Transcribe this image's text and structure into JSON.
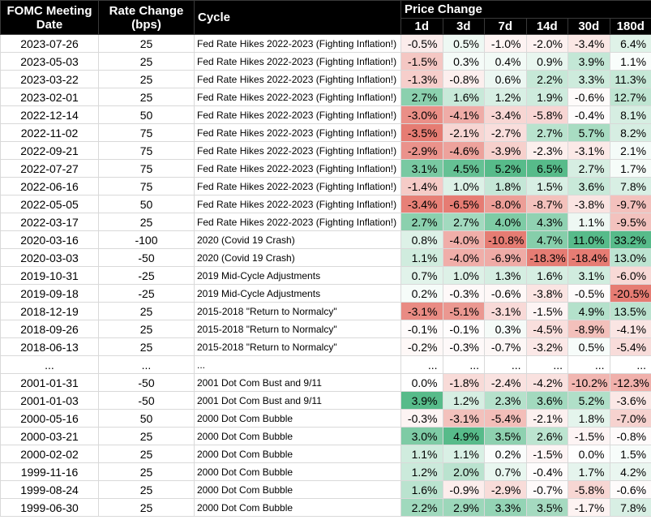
{
  "headers": {
    "date": [
      "FOMC Meeting",
      "Date"
    ],
    "rate": [
      "Rate Change",
      "(bps)"
    ],
    "cycle": "Cycle",
    "price_change": "Price Change",
    "periods": [
      "1d",
      "3d",
      "7d",
      "14d",
      "30d",
      "180d"
    ]
  },
  "colors": {
    "header_bg": "#000000",
    "header_text": "#ffffff",
    "positive_max": "#57bb8a",
    "negative_max": "#e67c73",
    "neutral": "#ffffff"
  },
  "rows": [
    {
      "date": "2023-07-26",
      "rate": "25",
      "cycle": "Fed Rate Hikes 2022-2023 (Fighting Inflation!)",
      "changes": [
        "-0.5%",
        "0.5%",
        "-1.0%",
        "-2.0%",
        "-3.4%",
        "6.4%"
      ]
    },
    {
      "date": "2023-05-03",
      "rate": "25",
      "cycle": "Fed Rate Hikes 2022-2023 (Fighting Inflation!)",
      "changes": [
        "-1.5%",
        "0.3%",
        "0.4%",
        "0.9%",
        "3.9%",
        "1.1%"
      ]
    },
    {
      "date": "2023-03-22",
      "rate": "25",
      "cycle": "Fed Rate Hikes 2022-2023 (Fighting Inflation!)",
      "changes": [
        "-1.3%",
        "-0.8%",
        "0.6%",
        "2.2%",
        "3.3%",
        "11.3%"
      ]
    },
    {
      "date": "2023-02-01",
      "rate": "25",
      "cycle": "Fed Rate Hikes 2022-2023 (Fighting Inflation!)",
      "changes": [
        "2.7%",
        "1.6%",
        "1.2%",
        "1.9%",
        "-0.6%",
        "12.7%"
      ]
    },
    {
      "date": "2022-12-14",
      "rate": "50",
      "cycle": "Fed Rate Hikes 2022-2023 (Fighting Inflation!)",
      "changes": [
        "-3.0%",
        "-4.1%",
        "-3.4%",
        "-5.8%",
        "-0.4%",
        "8.1%"
      ]
    },
    {
      "date": "2022-11-02",
      "rate": "75",
      "cycle": "Fed Rate Hikes 2022-2023 (Fighting Inflation!)",
      "changes": [
        "-3.5%",
        "-2.1%",
        "-2.7%",
        "2.7%",
        "5.7%",
        "8.2%"
      ]
    },
    {
      "date": "2022-09-21",
      "rate": "75",
      "cycle": "Fed Rate Hikes 2022-2023 (Fighting Inflation!)",
      "changes": [
        "-2.9%",
        "-4.6%",
        "-3.9%",
        "-2.3%",
        "-3.1%",
        "2.1%"
      ]
    },
    {
      "date": "2022-07-27",
      "rate": "75",
      "cycle": "Fed Rate Hikes 2022-2023 (Fighting Inflation!)",
      "changes": [
        "3.1%",
        "4.5%",
        "5.2%",
        "6.5%",
        "2.7%",
        "1.7%"
      ]
    },
    {
      "date": "2022-06-16",
      "rate": "75",
      "cycle": "Fed Rate Hikes 2022-2023 (Fighting Inflation!)",
      "changes": [
        "-1.4%",
        "1.0%",
        "1.8%",
        "1.5%",
        "3.6%",
        "7.8%"
      ]
    },
    {
      "date": "2022-05-05",
      "rate": "50",
      "cycle": "Fed Rate Hikes 2022-2023 (Fighting Inflation!)",
      "changes": [
        "-3.4%",
        "-6.5%",
        "-8.0%",
        "-8.7%",
        "-3.8%",
        "-9.7%"
      ]
    },
    {
      "date": "2022-03-17",
      "rate": "25",
      "cycle": "Fed Rate Hikes 2022-2023 (Fighting Inflation!)",
      "changes": [
        "2.7%",
        "2.7%",
        "4.0%",
        "4.3%",
        "1.1%",
        "-9.5%"
      ]
    },
    {
      "date": "2020-03-16",
      "rate": "-100",
      "cycle": "2020 (Covid 19 Crash)",
      "changes": [
        "0.8%",
        "-4.0%",
        "-10.8%",
        "4.7%",
        "11.0%",
        "33.2%"
      ]
    },
    {
      "date": "2020-03-03",
      "rate": "-50",
      "cycle": "2020 (Covid 19 Crash)",
      "changes": [
        "1.1%",
        "-4.0%",
        "-6.9%",
        "-18.3%",
        "-18.4%",
        "13.0%"
      ]
    },
    {
      "date": "2019-10-31",
      "rate": "-25",
      "cycle": "2019 Mid-Cycle Adjustments",
      "changes": [
        "0.7%",
        "1.0%",
        "1.3%",
        "1.6%",
        "3.1%",
        "-6.0%"
      ]
    },
    {
      "date": "2019-09-18",
      "rate": "-25",
      "cycle": "2019 Mid-Cycle Adjustments",
      "changes": [
        "0.2%",
        "-0.3%",
        "-0.6%",
        "-3.8%",
        "-0.5%",
        "-20.5%"
      ]
    },
    {
      "date": "2018-12-19",
      "rate": "25",
      "cycle": "2015-2018 \"Return to Normalcy\"",
      "changes": [
        "-3.1%",
        "-5.1%",
        "-3.1%",
        "-1.5%",
        "4.9%",
        "13.5%"
      ]
    },
    {
      "date": "2018-09-26",
      "rate": "25",
      "cycle": "2015-2018 \"Return to Normalcy\"",
      "changes": [
        "-0.1%",
        "-0.1%",
        "0.3%",
        "-4.5%",
        "-8.9%",
        "-4.1%"
      ]
    },
    {
      "date": "2018-06-13",
      "rate": "25",
      "cycle": "2015-2018 \"Return to Normalcy\"",
      "changes": [
        "-0.2%",
        "-0.3%",
        "-0.7%",
        "-3.2%",
        "0.5%",
        "-5.4%"
      ]
    },
    {
      "date": "...",
      "rate": "...",
      "cycle": "...",
      "changes": [
        "...",
        "...",
        "...",
        "...",
        "...",
        "..."
      ]
    },
    {
      "date": "2001-01-31",
      "rate": "-50",
      "cycle": "2001 Dot Com Bust and 9/11",
      "changes": [
        "0.0%",
        "-1.8%",
        "-2.4%",
        "-4.2%",
        "-10.2%",
        "-12.3%"
      ]
    },
    {
      "date": "2001-01-03",
      "rate": "-50",
      "cycle": "2001 Dot Com Bust and 9/11",
      "changes": [
        "3.9%",
        "1.2%",
        "2.3%",
        "3.6%",
        "5.2%",
        "-3.6%"
      ]
    },
    {
      "date": "2000-05-16",
      "rate": "50",
      "cycle": "2000 Dot Com Bubble",
      "changes": [
        "-0.3%",
        "-3.1%",
        "-5.4%",
        "-2.1%",
        "1.8%",
        "-7.0%"
      ]
    },
    {
      "date": "2000-03-21",
      "rate": "25",
      "cycle": "2000 Dot Com Bubble",
      "changes": [
        "3.0%",
        "4.9%",
        "3.5%",
        "2.6%",
        "-1.5%",
        "-0.8%"
      ]
    },
    {
      "date": "2000-02-02",
      "rate": "25",
      "cycle": "2000 Dot Com Bubble",
      "changes": [
        "1.1%",
        "1.1%",
        "0.2%",
        "-1.5%",
        "0.0%",
        "1.5%"
      ]
    },
    {
      "date": "1999-11-16",
      "rate": "25",
      "cycle": "2000 Dot Com Bubble",
      "changes": [
        "1.2%",
        "2.0%",
        "0.7%",
        "-0.4%",
        "1.7%",
        "4.2%"
      ]
    },
    {
      "date": "1999-08-24",
      "rate": "25",
      "cycle": "2000 Dot Com Bubble",
      "changes": [
        "1.6%",
        "-0.9%",
        "-2.9%",
        "-0.7%",
        "-5.8%",
        "-0.6%"
      ]
    },
    {
      "date": "1999-06-30",
      "rate": "25",
      "cycle": "2000 Dot Com Bubble",
      "changes": [
        "2.2%",
        "2.9%",
        "3.3%",
        "3.5%",
        "-1.7%",
        "7.8%"
      ]
    }
  ]
}
